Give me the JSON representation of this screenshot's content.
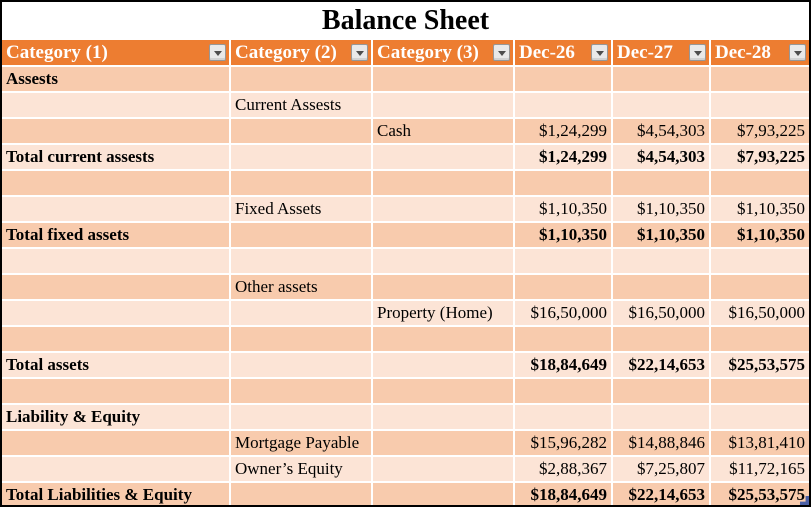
{
  "title": "Balance Sheet",
  "colors": {
    "header_bg": "#ED7D31",
    "header_text": "#FFFFFF",
    "row_dark": "#F8CBAD",
    "row_light": "#FCE4D6",
    "gridline": "#FFFFFF",
    "outer_border": "#000000",
    "body_text": "#000000",
    "resize_handle": "#4A5FA5"
  },
  "columns": [
    {
      "label": "Category (1)",
      "align": "left",
      "filter_icon": "chevron-down-icon"
    },
    {
      "label": "Category (2)",
      "align": "left",
      "filter_icon": "chevron-down-icon"
    },
    {
      "label": "Category (3)",
      "align": "left",
      "filter_icon": "chevron-down-icon"
    },
    {
      "label": "Dec-26",
      "align": "right",
      "filter_icon": "chevron-down-icon"
    },
    {
      "label": "Dec-27",
      "align": "right",
      "filter_icon": "chevron-down-icon"
    },
    {
      "label": "Dec-28",
      "align": "right",
      "filter_icon": "chevron-down-icon"
    }
  ],
  "rows": [
    {
      "shade": "dark",
      "bold": true,
      "cells": [
        "Assests",
        "",
        "",
        "",
        "",
        ""
      ]
    },
    {
      "shade": "light",
      "bold": false,
      "cells": [
        "",
        "Current Assests",
        "",
        "",
        "",
        ""
      ]
    },
    {
      "shade": "dark",
      "bold": false,
      "cells": [
        "",
        "",
        "Cash",
        "$1,24,299",
        "$4,54,303",
        "$7,93,225"
      ]
    },
    {
      "shade": "light",
      "bold": true,
      "cells": [
        "Total current assests",
        "",
        "",
        "$1,24,299",
        "$4,54,303",
        "$7,93,225"
      ]
    },
    {
      "shade": "dark",
      "bold": false,
      "cells": [
        "",
        "",
        "",
        "",
        "",
        ""
      ]
    },
    {
      "shade": "light",
      "bold": false,
      "cells": [
        "",
        "Fixed Assets",
        "",
        "$1,10,350",
        "$1,10,350",
        "$1,10,350"
      ]
    },
    {
      "shade": "dark",
      "bold": true,
      "cells": [
        "Total fixed assets",
        "",
        "",
        "$1,10,350",
        "$1,10,350",
        "$1,10,350"
      ]
    },
    {
      "shade": "light",
      "bold": false,
      "cells": [
        "",
        "",
        "",
        "",
        "",
        ""
      ]
    },
    {
      "shade": "dark",
      "bold": false,
      "cells": [
        "",
        "Other assets",
        "",
        "",
        "",
        ""
      ]
    },
    {
      "shade": "light",
      "bold": false,
      "cells": [
        "",
        "",
        "Property (Home)",
        "$16,50,000",
        "$16,50,000",
        "$16,50,000"
      ]
    },
    {
      "shade": "dark",
      "bold": false,
      "cells": [
        "",
        "",
        "",
        "",
        "",
        ""
      ]
    },
    {
      "shade": "light",
      "bold": true,
      "cells": [
        "Total assets",
        "",
        "",
        "$18,84,649",
        "$22,14,653",
        "$25,53,575"
      ]
    },
    {
      "shade": "dark",
      "bold": false,
      "cells": [
        "",
        "",
        "",
        "",
        "",
        ""
      ]
    },
    {
      "shade": "light",
      "bold": true,
      "cells": [
        "Liability & Equity",
        "",
        "",
        "",
        "",
        ""
      ]
    },
    {
      "shade": "dark",
      "bold": false,
      "cells": [
        "",
        "Mortgage Payable",
        "",
        "$15,96,282",
        "$14,88,846",
        "$13,81,410"
      ]
    },
    {
      "shade": "light",
      "bold": false,
      "cells": [
        "",
        "Owner’s Equity",
        "",
        "$2,88,367",
        "$7,25,807",
        "$11,72,165"
      ]
    },
    {
      "shade": "dark",
      "bold": true,
      "cells": [
        "Total Liabilities & Equity",
        "",
        "",
        "$18,84,649",
        "$22,14,653",
        "$25,53,575"
      ]
    }
  ]
}
